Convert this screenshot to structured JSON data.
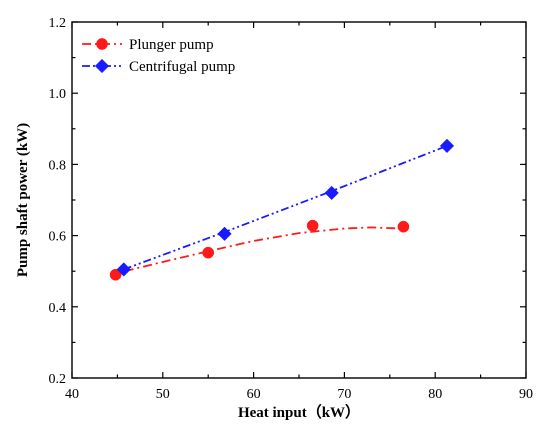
{
  "chart_data": {
    "type": "line",
    "xlabel": "Heat input（kW）",
    "ylabel": "Pump shaft power (kW)",
    "xlim": [
      40,
      90
    ],
    "ylim": [
      0.2,
      1.2
    ],
    "xticks": [
      40,
      50,
      60,
      70,
      80,
      90
    ],
    "yticks": [
      0.2,
      0.4,
      0.6,
      0.8,
      1.0,
      1.2
    ],
    "xtick_labels": [
      "40",
      "50",
      "60",
      "70",
      "80",
      "90"
    ],
    "ytick_labels": [
      "0.2",
      "0.4",
      "0.6",
      "0.8",
      "1.0",
      "1.2"
    ],
    "legend_position": "top-left",
    "grid": false,
    "series": [
      {
        "name": "Plunger pump",
        "marker": "circle",
        "line_style": "dash-dot",
        "color": "#ff1a1a",
        "points": [
          {
            "x": 44.8,
            "y": 0.49
          },
          {
            "x": 55.0,
            "y": 0.552
          },
          {
            "x": 66.5,
            "y": 0.628
          },
          {
            "x": 76.5,
            "y": 0.625
          }
        ],
        "fit_curve": [
          {
            "x": 45.8,
            "y": 0.5
          },
          {
            "x": 50.0,
            "y": 0.526
          },
          {
            "x": 55.0,
            "y": 0.556
          },
          {
            "x": 60.0,
            "y": 0.585
          },
          {
            "x": 65.0,
            "y": 0.607
          },
          {
            "x": 70.0,
            "y": 0.62
          },
          {
            "x": 73.0,
            "y": 0.623
          },
          {
            "x": 76.0,
            "y": 0.62
          }
        ]
      },
      {
        "name": "Centrifugal pump",
        "marker": "diamond",
        "line_style": "dash-dot-dot",
        "color": "#1a1aff",
        "points": [
          {
            "x": 45.7,
            "y": 0.505
          },
          {
            "x": 56.8,
            "y": 0.605
          },
          {
            "x": 68.6,
            "y": 0.72
          },
          {
            "x": 81.3,
            "y": 0.852
          }
        ],
        "fit_curve": [
          {
            "x": 45.7,
            "y": 0.505
          },
          {
            "x": 56.8,
            "y": 0.61
          },
          {
            "x": 68.6,
            "y": 0.725
          },
          {
            "x": 81.3,
            "y": 0.852
          }
        ]
      }
    ]
  }
}
